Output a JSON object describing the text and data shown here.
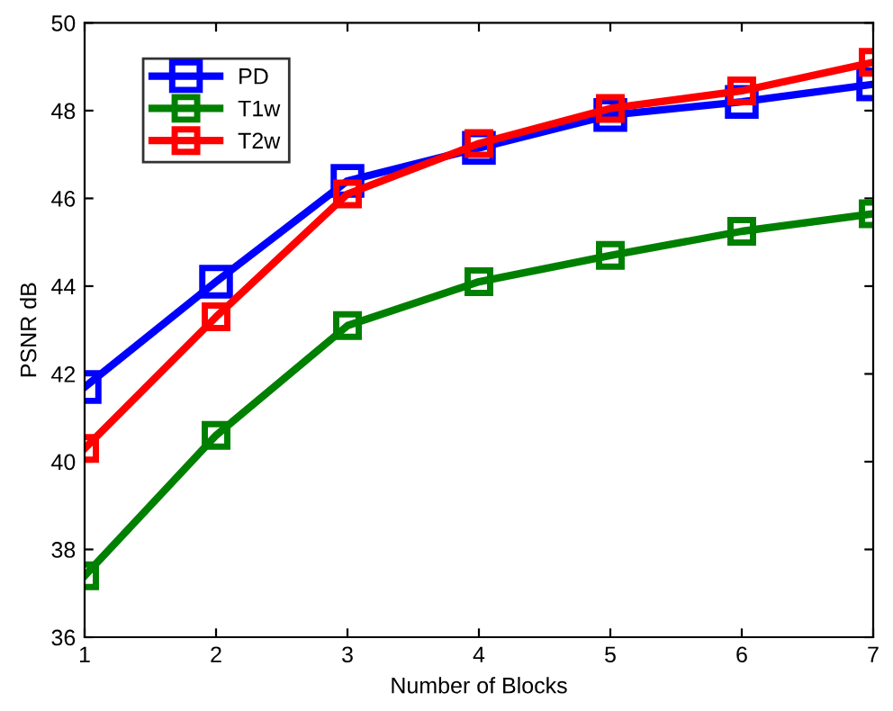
{
  "chart_data": {
    "type": "line",
    "xlabel": "Number of Blocks",
    "ylabel": "PSNR dB",
    "x": [
      1,
      2,
      3,
      4,
      5,
      6,
      7
    ],
    "series": [
      {
        "name": "PD",
        "color": "#0000ff",
        "values": [
          41.7,
          44.1,
          46.4,
          47.15,
          47.9,
          48.2,
          48.6
        ]
      },
      {
        "name": "T1w",
        "color": "#008000",
        "values": [
          37.4,
          40.6,
          43.1,
          44.1,
          44.7,
          45.25,
          45.65
        ]
      },
      {
        "name": "T2w",
        "color": "#ff0000",
        "values": [
          40.3,
          43.3,
          46.1,
          47.25,
          48.05,
          48.45,
          49.1
        ]
      }
    ],
    "xlim": [
      1,
      7
    ],
    "xticks": [
      1,
      2,
      3,
      4,
      5,
      6,
      7
    ],
    "ylim": [
      36,
      50
    ],
    "yticks": [
      36,
      38,
      40,
      42,
      44,
      46,
      48,
      50
    ],
    "marker": "square",
    "line_style": "solid",
    "legend": "top left",
    "grid": false
  }
}
